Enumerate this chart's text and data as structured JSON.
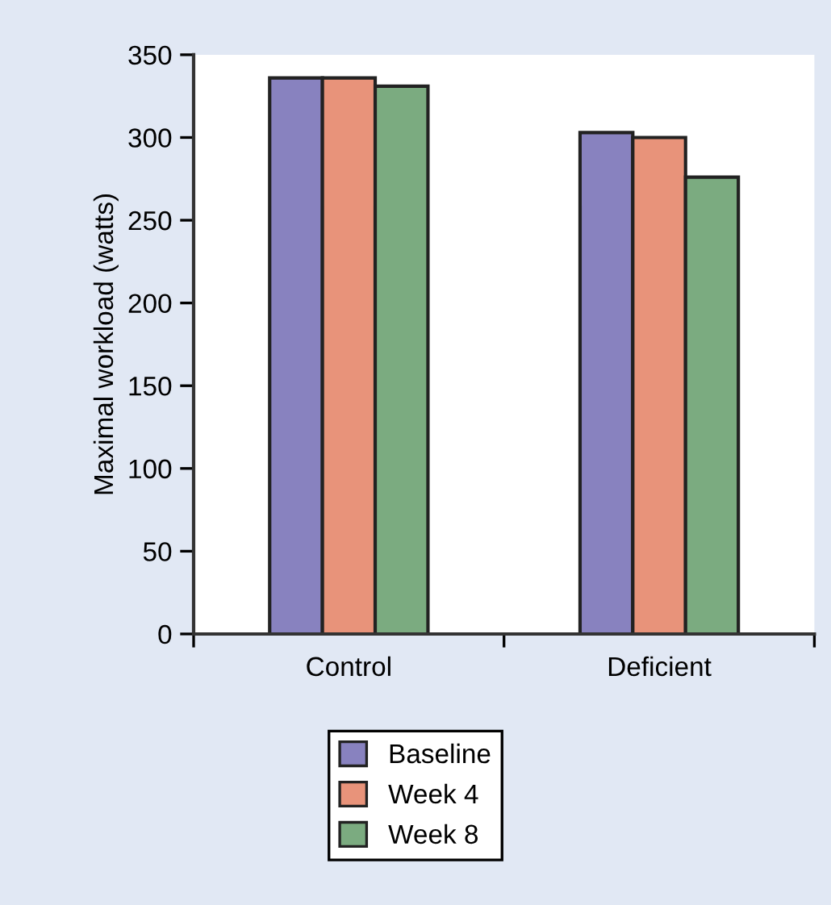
{
  "chart_data": {
    "type": "bar",
    "ylabel": "Maximal workload (watts)",
    "categories": [
      "Control",
      "Deficient"
    ],
    "series": [
      {
        "name": "Baseline",
        "color": "#8882bf",
        "values": [
          336,
          303
        ]
      },
      {
        "name": "Week 4",
        "color": "#e8937a",
        "values": [
          336,
          300
        ]
      },
      {
        "name": "Week 8",
        "color": "#7bab80",
        "values": [
          331,
          276
        ]
      }
    ],
    "ylim": [
      0,
      350
    ],
    "yticks": [
      0,
      50,
      100,
      150,
      200,
      250,
      300,
      350
    ],
    "grid": false,
    "legend": "bottom"
  }
}
